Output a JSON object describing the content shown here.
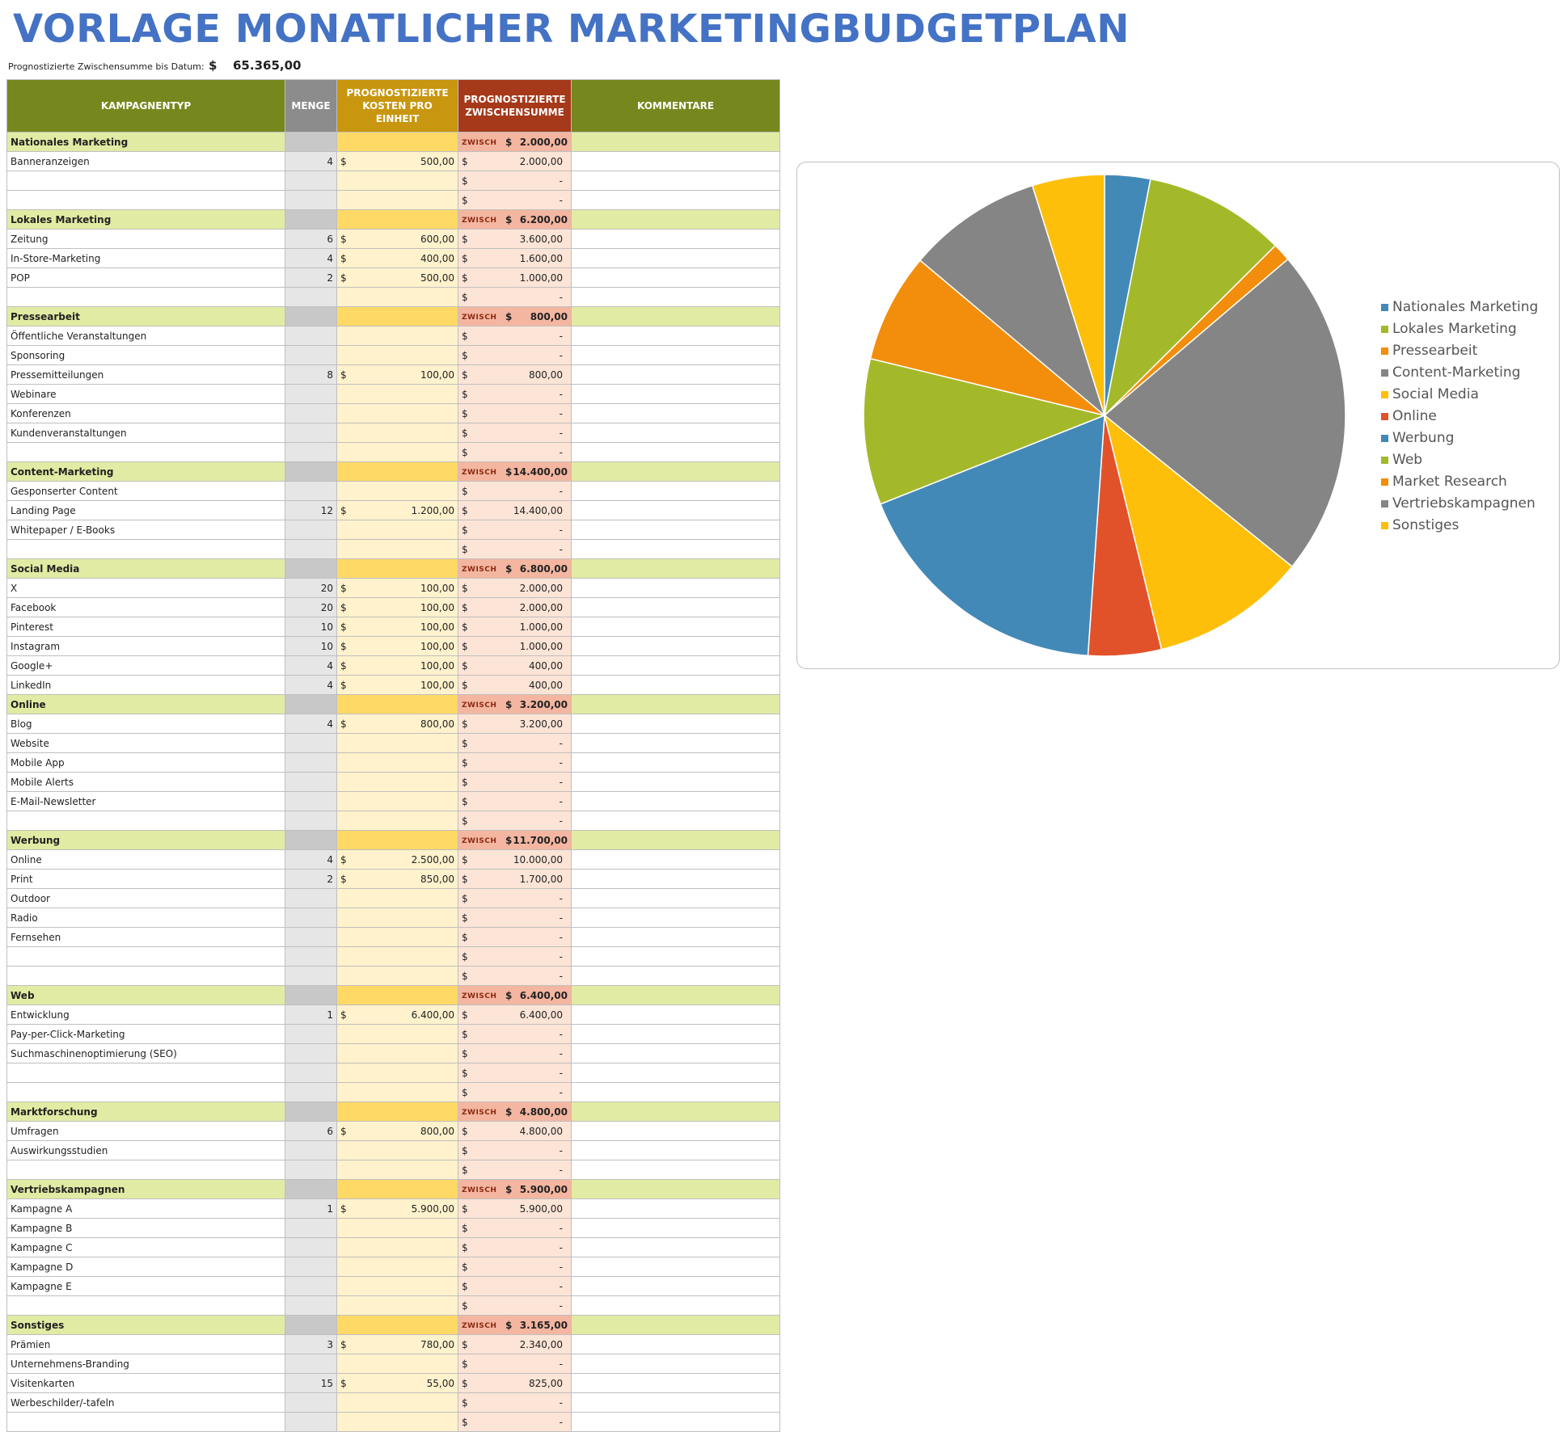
{
  "title": "VORLAGE MONATLICHER MARKETINGBUDGETPLAN",
  "summary": {
    "label": "Prognostizierte Zwischensumme bis Datum:",
    "currency": "$",
    "value": "65.365,00"
  },
  "currency": "$",
  "subtotal_marker": "ZWISCH",
  "headers": {
    "type": "KAMPAGNENTYP",
    "qty": "MENGE",
    "cost": "PROGNOSTIZIERTE KOSTEN PRO EINHEIT",
    "subtotal": "PROGNOSTIZIERTE ZWISCHENSUMME",
    "comments": "KOMMENTARE"
  },
  "rows": [
    {
      "kind": "cat",
      "label": "Nationales Marketing",
      "subtotal": "2.000,00"
    },
    {
      "kind": "item",
      "label": "Banneranzeigen",
      "qty": "4",
      "cost": "500,00",
      "subtotal": "2.000,00"
    },
    {
      "kind": "item",
      "label": "",
      "qty": "",
      "cost": "",
      "subtotal": "-"
    },
    {
      "kind": "item",
      "label": "",
      "qty": "",
      "cost": "",
      "subtotal": "-"
    },
    {
      "kind": "cat",
      "label": "Lokales Marketing",
      "subtotal": "6.200,00"
    },
    {
      "kind": "item",
      "label": "Zeitung",
      "qty": "6",
      "cost": "600,00",
      "subtotal": "3.600,00"
    },
    {
      "kind": "item",
      "label": "In-Store-Marketing",
      "qty": "4",
      "cost": "400,00",
      "subtotal": "1.600,00"
    },
    {
      "kind": "item",
      "label": "POP",
      "qty": "2",
      "cost": "500,00",
      "subtotal": "1.000,00"
    },
    {
      "kind": "item",
      "label": "",
      "qty": "",
      "cost": "",
      "subtotal": "-"
    },
    {
      "kind": "cat",
      "label": "Pressearbeit",
      "subtotal": "800,00"
    },
    {
      "kind": "item",
      "label": "Öffentliche Veranstaltungen",
      "qty": "",
      "cost": "",
      "subtotal": "-"
    },
    {
      "kind": "item",
      "label": "Sponsoring",
      "qty": "",
      "cost": "",
      "subtotal": "-"
    },
    {
      "kind": "item",
      "label": "Pressemitteilungen",
      "qty": "8",
      "cost": "100,00",
      "subtotal": "800,00"
    },
    {
      "kind": "item",
      "label": "Webinare",
      "qty": "",
      "cost": "",
      "subtotal": "-"
    },
    {
      "kind": "item",
      "label": "Konferenzen",
      "qty": "",
      "cost": "",
      "subtotal": "-"
    },
    {
      "kind": "item",
      "label": "Kundenveranstaltungen",
      "qty": "",
      "cost": "",
      "subtotal": "-"
    },
    {
      "kind": "item",
      "label": "",
      "qty": "",
      "cost": "",
      "subtotal": "-"
    },
    {
      "kind": "cat",
      "label": "Content-Marketing",
      "subtotal": "14.400,00"
    },
    {
      "kind": "item",
      "label": "Gesponserter Content",
      "qty": "",
      "cost": "",
      "subtotal": "-"
    },
    {
      "kind": "item",
      "label": "Landing Page",
      "qty": "12",
      "cost": "1.200,00",
      "subtotal": "14.400,00"
    },
    {
      "kind": "item",
      "label": "Whitepaper / E-Books",
      "qty": "",
      "cost": "",
      "subtotal": "-"
    },
    {
      "kind": "item",
      "label": "",
      "qty": "",
      "cost": "",
      "subtotal": "-"
    },
    {
      "kind": "cat",
      "label": "Social Media",
      "subtotal": "6.800,00"
    },
    {
      "kind": "item",
      "label": "X",
      "qty": "20",
      "cost": "100,00",
      "subtotal": "2.000,00"
    },
    {
      "kind": "item",
      "label": "Facebook",
      "qty": "20",
      "cost": "100,00",
      "subtotal": "2.000,00"
    },
    {
      "kind": "item",
      "label": "Pinterest",
      "qty": "10",
      "cost": "100,00",
      "subtotal": "1.000,00"
    },
    {
      "kind": "item",
      "label": "Instagram",
      "qty": "10",
      "cost": "100,00",
      "subtotal": "1.000,00"
    },
    {
      "kind": "item",
      "label": "Google+",
      "qty": "4",
      "cost": "100,00",
      "subtotal": "400,00"
    },
    {
      "kind": "item",
      "label": "LinkedIn",
      "qty": "4",
      "cost": "100,00",
      "subtotal": "400,00"
    },
    {
      "kind": "cat",
      "label": "Online",
      "subtotal": "3.200,00"
    },
    {
      "kind": "item",
      "label": "Blog",
      "qty": "4",
      "cost": "800,00",
      "subtotal": "3.200,00"
    },
    {
      "kind": "item",
      "label": "Website",
      "qty": "",
      "cost": "",
      "subtotal": "-"
    },
    {
      "kind": "item",
      "label": "Mobile App",
      "qty": "",
      "cost": "",
      "subtotal": "-"
    },
    {
      "kind": "item",
      "label": "Mobile Alerts",
      "qty": "",
      "cost": "",
      "subtotal": "-"
    },
    {
      "kind": "item",
      "label": "E-Mail-Newsletter",
      "qty": "",
      "cost": "",
      "subtotal": "-"
    },
    {
      "kind": "item",
      "label": "",
      "qty": "",
      "cost": "",
      "subtotal": "-"
    },
    {
      "kind": "cat",
      "label": "Werbung",
      "subtotal": "11.700,00"
    },
    {
      "kind": "item",
      "label": "Online",
      "qty": "4",
      "cost": "2.500,00",
      "subtotal": "10.000,00"
    },
    {
      "kind": "item",
      "label": "Print",
      "qty": "2",
      "cost": "850,00",
      "subtotal": "1.700,00"
    },
    {
      "kind": "item",
      "label": "Outdoor",
      "qty": "",
      "cost": "",
      "subtotal": "-"
    },
    {
      "kind": "item",
      "label": "Radio",
      "qty": "",
      "cost": "",
      "subtotal": "-"
    },
    {
      "kind": "item",
      "label": "Fernsehen",
      "qty": "",
      "cost": "",
      "subtotal": "-"
    },
    {
      "kind": "item",
      "label": "",
      "qty": "",
      "cost": "",
      "subtotal": "-"
    },
    {
      "kind": "item",
      "label": "",
      "qty": "",
      "cost": "",
      "subtotal": "-"
    },
    {
      "kind": "cat",
      "label": "Web",
      "subtotal": "6.400,00"
    },
    {
      "kind": "item",
      "label": "Entwicklung",
      "qty": "1",
      "cost": "6.400,00",
      "subtotal": "6.400,00"
    },
    {
      "kind": "item",
      "label": "Pay-per-Click-Marketing",
      "qty": "",
      "cost": "",
      "subtotal": "-"
    },
    {
      "kind": "item",
      "label": "Suchmaschinenoptimierung (SEO)",
      "qty": "",
      "cost": "",
      "subtotal": "-"
    },
    {
      "kind": "item",
      "label": "",
      "qty": "",
      "cost": "",
      "subtotal": "-"
    },
    {
      "kind": "item",
      "label": "",
      "qty": "",
      "cost": "",
      "subtotal": "-"
    },
    {
      "kind": "cat",
      "label": "Marktforschung",
      "subtotal": "4.800,00"
    },
    {
      "kind": "item",
      "label": "Umfragen",
      "qty": "6",
      "cost": "800,00",
      "subtotal": "4.800,00"
    },
    {
      "kind": "item",
      "label": "Auswirkungsstudien",
      "qty": "",
      "cost": "",
      "subtotal": "-"
    },
    {
      "kind": "item",
      "label": "",
      "qty": "",
      "cost": "",
      "subtotal": "-"
    },
    {
      "kind": "cat",
      "label": "Vertriebskampagnen",
      "subtotal": "5.900,00"
    },
    {
      "kind": "item",
      "label": "Kampagne A",
      "qty": "1",
      "cost": "5.900,00",
      "subtotal": "5.900,00"
    },
    {
      "kind": "item",
      "label": "Kampagne B",
      "qty": "",
      "cost": "",
      "subtotal": "-"
    },
    {
      "kind": "item",
      "label": "Kampagne C",
      "qty": "",
      "cost": "",
      "subtotal": "-"
    },
    {
      "kind": "item",
      "label": "Kampagne D",
      "qty": "",
      "cost": "",
      "subtotal": "-"
    },
    {
      "kind": "item",
      "label": "Kampagne E",
      "qty": "",
      "cost": "",
      "subtotal": "-"
    },
    {
      "kind": "item",
      "label": "",
      "qty": "",
      "cost": "",
      "subtotal": "-"
    },
    {
      "kind": "cat",
      "label": "Sonstiges",
      "subtotal": "3.165,00"
    },
    {
      "kind": "item",
      "label": "Prämien",
      "qty": "3",
      "cost": "780,00",
      "subtotal": "2.340,00"
    },
    {
      "kind": "item",
      "label": "Unternehmens-Branding",
      "qty": "",
      "cost": "",
      "subtotal": "-"
    },
    {
      "kind": "item",
      "label": "Visitenkarten",
      "qty": "15",
      "cost": "55,00",
      "subtotal": "825,00"
    },
    {
      "kind": "item",
      "label": "Werbeschilder/-tafeln",
      "qty": "",
      "cost": "",
      "subtotal": "-"
    },
    {
      "kind": "item",
      "label": "",
      "qty": "",
      "cost": "",
      "subtotal": "-"
    }
  ],
  "chart_data": {
    "type": "pie",
    "title": "",
    "legend_position": "right",
    "categories": [
      "Nationales Marketing",
      "Lokales Marketing",
      "Pressearbeit",
      "Content-Marketing",
      "Social Media",
      "Online",
      "Werbung",
      "Web",
      "Market Research",
      "Vertriebskampagnen",
      "Sonstiges"
    ],
    "values": [
      2000,
      6200,
      800,
      14400,
      6800,
      3200,
      11700,
      6400,
      4800,
      5900,
      3165
    ],
    "colors": [
      "#4389B8",
      "#A4B92A",
      "#F28E0C",
      "#858585",
      "#FDBF0A",
      "#E2522A",
      "#4389B8",
      "#A4B92A",
      "#F28E0C",
      "#858585",
      "#FDBF0A"
    ]
  }
}
